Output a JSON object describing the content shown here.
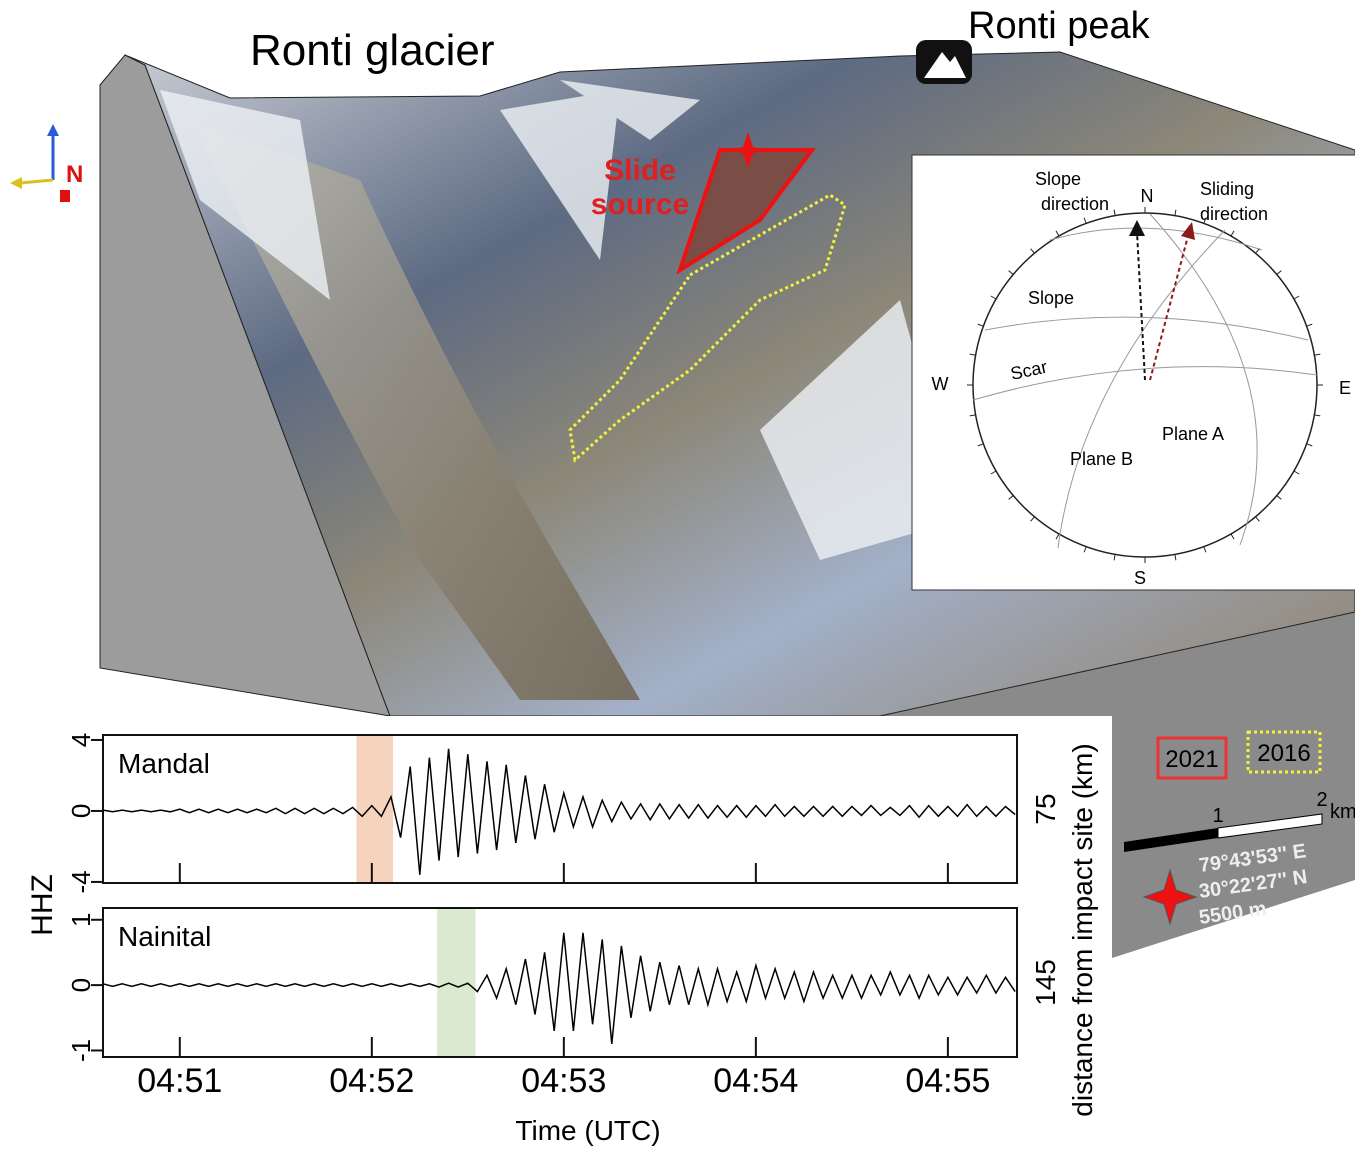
{
  "labels": {
    "ronti_glacier": "Ronti glacier",
    "ronti_peak": "Ronti peak",
    "slide_source": [
      "Slide",
      "source"
    ],
    "north": "N"
  },
  "legend": {
    "items": [
      "2021",
      "2016"
    ]
  },
  "scale_bar": {
    "ticks": [
      "1",
      "2"
    ],
    "unit": "km"
  },
  "location": {
    "lon": "79°43'53'' E",
    "lat": "30°22'27'' N",
    "elevation": "5500 m"
  },
  "stereonet": {
    "slope_direction": [
      "Slope",
      "direction"
    ],
    "north": "N",
    "sliding_direction": [
      "Sliding",
      "direction"
    ],
    "slope": "Slope",
    "scar": "Scar",
    "west": "W",
    "east": "E",
    "plane_a": "Plane A",
    "plane_b": "Plane B",
    "south": "S"
  },
  "chart_data": {
    "type": "line",
    "xlabel": "Time (UTC)",
    "ylabel": "HHZ",
    "y2label": "distance from impact site (km)",
    "xlim": [
      290.6,
      295.36
    ],
    "xticks": [
      {
        "value": 291,
        "label": "04:51"
      },
      {
        "value": 292,
        "label": "04:52"
      },
      {
        "value": 293,
        "label": "04:53"
      },
      {
        "value": 294,
        "label": "04:54"
      },
      {
        "value": 295,
        "label": "04:55"
      }
    ],
    "x": [
      290.6,
      290.65,
      290.7,
      290.75,
      290.8,
      290.85,
      290.9,
      290.95,
      291.0,
      291.05,
      291.1,
      291.15,
      291.2,
      291.25,
      291.3,
      291.35,
      291.4,
      291.45,
      291.5,
      291.55,
      291.6,
      291.65,
      291.7,
      291.75,
      291.8,
      291.85,
      291.9,
      291.95,
      292.0,
      292.05,
      292.1,
      292.15,
      292.2,
      292.25,
      292.3,
      292.35,
      292.4,
      292.45,
      292.5,
      292.55,
      292.6,
      292.65,
      292.7,
      292.75,
      292.8,
      292.85,
      292.9,
      292.95,
      293.0,
      293.05,
      293.1,
      293.15,
      293.2,
      293.25,
      293.3,
      293.35,
      293.4,
      293.45,
      293.5,
      293.55,
      293.6,
      293.65,
      293.7,
      293.75,
      293.8,
      293.85,
      293.9,
      293.95,
      294.0,
      294.05,
      294.1,
      294.15,
      294.2,
      294.25,
      294.3,
      294.35,
      294.4,
      294.45,
      294.5,
      294.55,
      294.6,
      294.65,
      294.7,
      294.75,
      294.8,
      294.85,
      294.9,
      294.95,
      295.0,
      295.05,
      295.1,
      295.15,
      295.2,
      295.25,
      295.3,
      295.35
    ],
    "series": [
      {
        "name": "Mandal",
        "distance": 75,
        "color": "#000000",
        "ylim": [
          -4.06,
          4.28
        ],
        "yticks": [
          4,
          0,
          -4
        ],
        "window": [
          291.92,
          292.11
        ],
        "window_color": "#f6d3bd",
        "values": [
          0.05,
          0.05,
          0.05,
          0.05,
          0.05,
          0.05,
          0.05,
          0.05,
          0.1,
          0.1,
          0.1,
          0.1,
          0.1,
          0.1,
          0.1,
          0.1,
          0.1,
          0.1,
          0.15,
          0.15,
          0.15,
          0.15,
          0.15,
          0.15,
          0.15,
          0.15,
          0.2,
          0.3,
          0.3,
          0.3,
          0.8,
          1.5,
          2.5,
          3.6,
          3.0,
          2.8,
          3.5,
          2.6,
          3.2,
          2.4,
          2.8,
          2.2,
          2.6,
          1.8,
          2.0,
          1.6,
          1.5,
          1.2,
          1.0,
          0.9,
          0.8,
          0.9,
          0.6,
          0.6,
          0.5,
          0.45,
          0.4,
          0.5,
          0.4,
          0.45,
          0.35,
          0.4,
          0.35,
          0.4,
          0.3,
          0.35,
          0.3,
          0.35,
          0.3,
          0.3,
          0.35,
          0.3,
          0.25,
          0.3,
          0.25,
          0.3,
          0.25,
          0.3,
          0.25,
          0.25,
          0.3,
          0.25,
          0.2,
          0.25,
          0.3,
          0.35,
          0.3,
          0.3,
          0.25,
          0.3,
          0.35,
          0.3,
          0.25,
          0.3,
          0.25,
          0.2
        ]
      },
      {
        "name": "Nainital",
        "distance": 145,
        "color": "#000000",
        "ylim": [
          -1.1,
          1.18
        ],
        "yticks": [
          1,
          0,
          -1
        ],
        "window": [
          292.34,
          292.54
        ],
        "window_color": "#d9ead0",
        "values": [
          0.02,
          0.02,
          0.02,
          0.02,
          0.02,
          0.02,
          0.02,
          0.02,
          0.02,
          0.02,
          0.02,
          0.02,
          0.02,
          0.02,
          0.02,
          0.02,
          0.02,
          0.02,
          0.02,
          0.02,
          0.02,
          0.02,
          0.02,
          0.02,
          0.02,
          0.02,
          0.02,
          0.02,
          0.02,
          0.02,
          0.02,
          0.02,
          0.02,
          0.02,
          0.02,
          0.03,
          0.03,
          0.03,
          0.03,
          0.1,
          0.15,
          0.2,
          0.25,
          0.3,
          0.4,
          0.45,
          0.5,
          0.7,
          0.8,
          0.7,
          0.8,
          0.6,
          0.7,
          0.9,
          0.6,
          0.5,
          0.45,
          0.4,
          0.35,
          0.3,
          0.3,
          0.3,
          0.25,
          0.3,
          0.25,
          0.25,
          0.2,
          0.25,
          0.3,
          0.2,
          0.25,
          0.2,
          0.2,
          0.25,
          0.2,
          0.2,
          0.15,
          0.2,
          0.15,
          0.2,
          0.15,
          0.15,
          0.2,
          0.15,
          0.15,
          0.2,
          0.15,
          0.15,
          0.12,
          0.15,
          0.12,
          0.12,
          0.15,
          0.12,
          0.12,
          0.1
        ]
      }
    ]
  }
}
